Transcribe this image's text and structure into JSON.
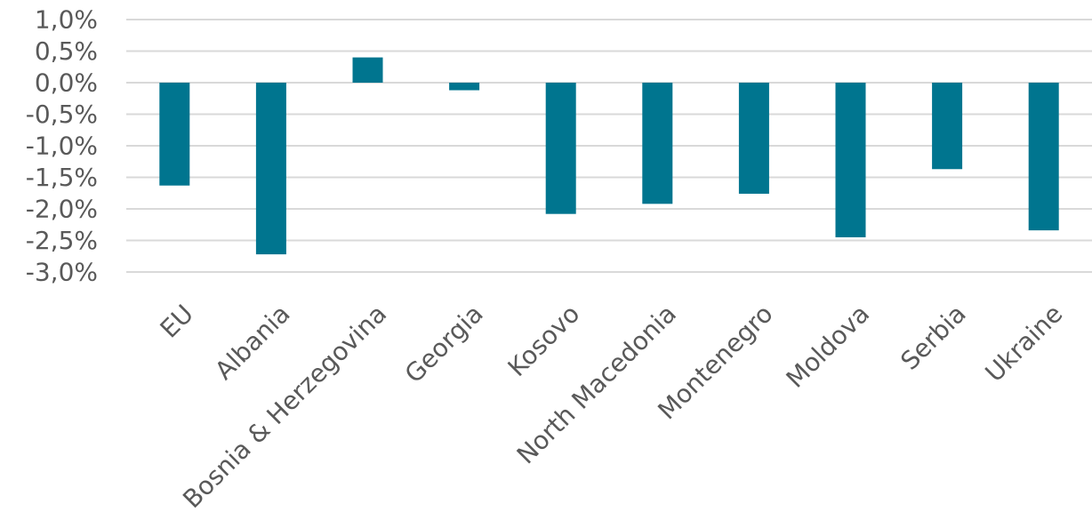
{
  "chart_data": {
    "type": "bar",
    "categories": [
      "EU",
      "Albania",
      "Bosnia & Herzegovina",
      "Georgia",
      "Kosovo",
      "North Macedonia",
      "Montenegro",
      "Moldova",
      "Serbia",
      "Ukraine"
    ],
    "values": [
      -1.63,
      -2.72,
      0.4,
      -0.12,
      -2.08,
      -1.92,
      -1.76,
      -2.45,
      -1.37,
      -2.34
    ],
    "ylim": [
      -3.0,
      1.0
    ],
    "yticks": [
      1.0,
      0.5,
      0.0,
      -0.5,
      -1.0,
      -1.5,
      -2.0,
      -2.5,
      -3.0
    ],
    "ytick_labels": [
      "1,0%",
      "0,5%",
      "0,0%",
      "-0,5%",
      "-1,0%",
      "-1,5%",
      "-2,0%",
      "-2,5%",
      "-3,0%"
    ],
    "title": "",
    "xlabel": "",
    "ylabel": "",
    "grid": true,
    "legend": "none",
    "bar_color": "#00758f"
  }
}
